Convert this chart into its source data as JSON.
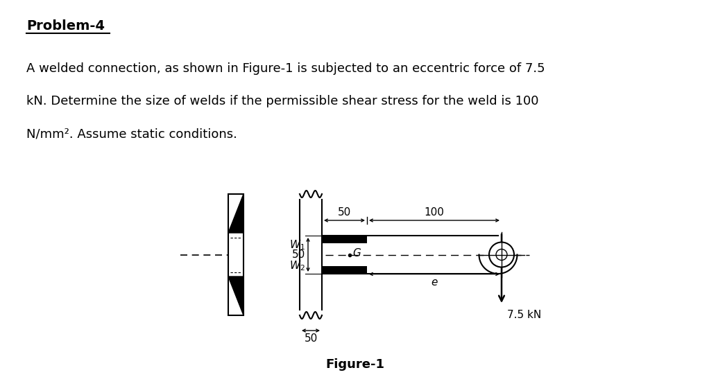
{
  "title": "Problem-4",
  "para_line1": "A welded connection, as shown in Figure-1 is subjected to an eccentric force of 7.5",
  "para_line2": "kN. Determine the size of welds if the permissible shear stress for the weld is 100",
  "para_line3": "N/mm². Assume static conditions.",
  "figure_label": "Figure-1",
  "bg_color": "#ffffff",
  "text_color": "#000000",
  "label_W1": "$W_1$",
  "label_W2": "$W_2$",
  "label_G": "$G$",
  "label_e": "$e$",
  "label_force": "7.5 kN",
  "dim_50_top": "50",
  "dim_100": "100",
  "dim_50_vert": "50",
  "dim_50_bot": "50"
}
